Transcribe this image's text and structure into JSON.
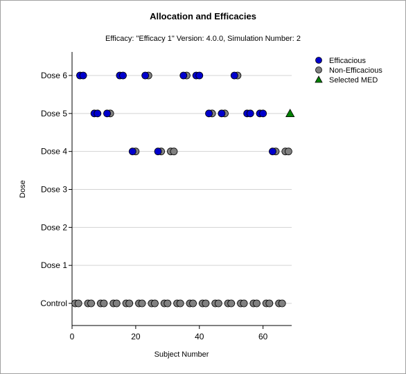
{
  "chart_data": {
    "type": "scatter",
    "title": "Allocation and Efficacies",
    "subtitle": "Efficacy: \"Efficacy 1\" Version: 4.0.0, Simulation Number: 2",
    "xlabel": "Subject Number",
    "ylabel": "Dose",
    "xlim": [
      0,
      69
    ],
    "x_ticks": [
      0,
      20,
      40,
      60
    ],
    "categories": [
      "Control",
      "Dose 1",
      "Dose 2",
      "Dose 3",
      "Dose 4",
      "Dose 5",
      "Dose 6"
    ],
    "grid": "horizontal",
    "legend_position": "top-right",
    "series": [
      {
        "name": "Efficacious",
        "color": "#0000cc",
        "marker": "circle",
        "points": [
          {
            "x": 2.5,
            "y": "Dose 6"
          },
          {
            "x": 3.5,
            "y": "Dose 6"
          },
          {
            "x": 15,
            "y": "Dose 6"
          },
          {
            "x": 16,
            "y": "Dose 6"
          },
          {
            "x": 23,
            "y": "Dose 6"
          },
          {
            "x": 35,
            "y": "Dose 6"
          },
          {
            "x": 39,
            "y": "Dose 6"
          },
          {
            "x": 40,
            "y": "Dose 6"
          },
          {
            "x": 51,
            "y": "Dose 6"
          },
          {
            "x": 7,
            "y": "Dose 5"
          },
          {
            "x": 8,
            "y": "Dose 5"
          },
          {
            "x": 11,
            "y": "Dose 5"
          },
          {
            "x": 43,
            "y": "Dose 5"
          },
          {
            "x": 47,
            "y": "Dose 5"
          },
          {
            "x": 55,
            "y": "Dose 5"
          },
          {
            "x": 56,
            "y": "Dose 5"
          },
          {
            "x": 59,
            "y": "Dose 5"
          },
          {
            "x": 60,
            "y": "Dose 5"
          },
          {
            "x": 19,
            "y": "Dose 4"
          },
          {
            "x": 27,
            "y": "Dose 4"
          },
          {
            "x": 63,
            "y": "Dose 4"
          }
        ]
      },
      {
        "name": "Non-Efficacious",
        "color": "#808080",
        "marker": "circle",
        "points": [
          {
            "x": 24,
            "y": "Dose 6"
          },
          {
            "x": 36,
            "y": "Dose 6"
          },
          {
            "x": 52,
            "y": "Dose 6"
          },
          {
            "x": 12,
            "y": "Dose 5"
          },
          {
            "x": 44,
            "y": "Dose 5"
          },
          {
            "x": 48,
            "y": "Dose 5"
          },
          {
            "x": 20,
            "y": "Dose 4"
          },
          {
            "x": 28,
            "y": "Dose 4"
          },
          {
            "x": 31,
            "y": "Dose 4"
          },
          {
            "x": 32,
            "y": "Dose 4"
          },
          {
            "x": 64,
            "y": "Dose 4"
          },
          {
            "x": 67,
            "y": "Dose 4"
          },
          {
            "x": 68,
            "y": "Dose 4"
          },
          {
            "x": 1,
            "y": "Control"
          },
          {
            "x": 2,
            "y": "Control"
          },
          {
            "x": 5,
            "y": "Control"
          },
          {
            "x": 6,
            "y": "Control"
          },
          {
            "x": 9,
            "y": "Control"
          },
          {
            "x": 10,
            "y": "Control"
          },
          {
            "x": 13,
            "y": "Control"
          },
          {
            "x": 14,
            "y": "Control"
          },
          {
            "x": 17,
            "y": "Control"
          },
          {
            "x": 18,
            "y": "Control"
          },
          {
            "x": 21,
            "y": "Control"
          },
          {
            "x": 22,
            "y": "Control"
          },
          {
            "x": 25,
            "y": "Control"
          },
          {
            "x": 26,
            "y": "Control"
          },
          {
            "x": 29,
            "y": "Control"
          },
          {
            "x": 30,
            "y": "Control"
          },
          {
            "x": 33,
            "y": "Control"
          },
          {
            "x": 34,
            "y": "Control"
          },
          {
            "x": 37,
            "y": "Control"
          },
          {
            "x": 38,
            "y": "Control"
          },
          {
            "x": 41,
            "y": "Control"
          },
          {
            "x": 42,
            "y": "Control"
          },
          {
            "x": 45,
            "y": "Control"
          },
          {
            "x": 46,
            "y": "Control"
          },
          {
            "x": 49,
            "y": "Control"
          },
          {
            "x": 50,
            "y": "Control"
          },
          {
            "x": 53,
            "y": "Control"
          },
          {
            "x": 54,
            "y": "Control"
          },
          {
            "x": 57,
            "y": "Control"
          },
          {
            "x": 58,
            "y": "Control"
          },
          {
            "x": 61,
            "y": "Control"
          },
          {
            "x": 62,
            "y": "Control"
          },
          {
            "x": 65,
            "y": "Control"
          },
          {
            "x": 66,
            "y": "Control"
          }
        ]
      },
      {
        "name": "Selected MED",
        "color": "#008000",
        "marker": "triangle",
        "points": [
          {
            "x": 68.5,
            "y": "Dose 5"
          }
        ]
      }
    ]
  }
}
